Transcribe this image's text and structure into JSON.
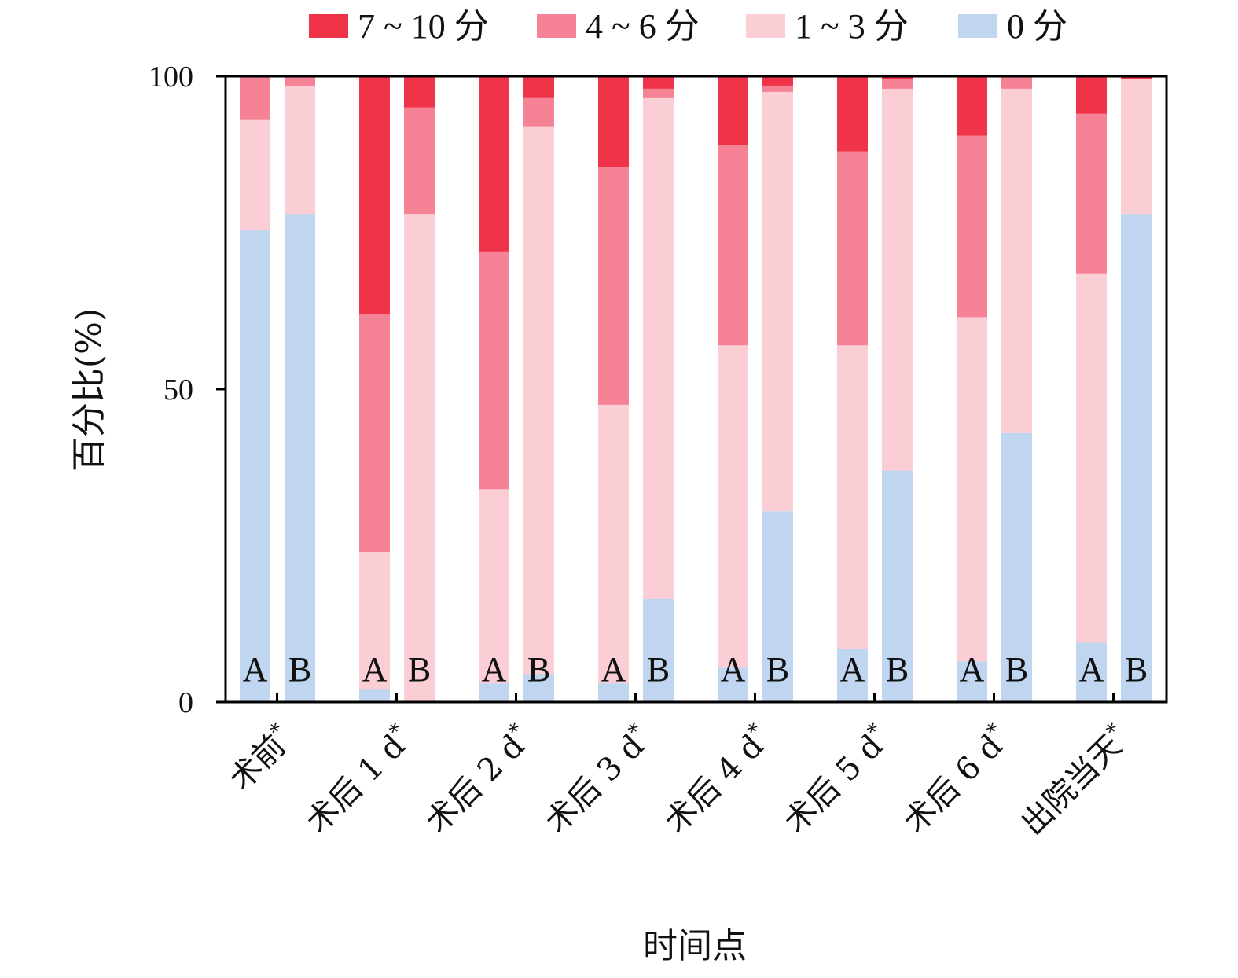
{
  "chart_data": {
    "type": "bar",
    "stacked": true,
    "ylabel": "百分比(%)",
    "xlabel": "时间点",
    "ylim": [
      0,
      100
    ],
    "yticks": [
      0,
      50,
      100
    ],
    "legend_position": "top",
    "groups": [
      "A",
      "B"
    ],
    "categories": [
      "术前*",
      "术后 1 d*",
      "术后 2 d*",
      "术后 3 d*",
      "术后 4 d*",
      "术后 5 d*",
      "术后 6 d*",
      "出院当天*"
    ],
    "series": [
      {
        "name": "0 分",
        "color": "#c0d5f0",
        "values": {
          "A": [
            75.5,
            2,
            3,
            3,
            5.5,
            8.5,
            6.5,
            9.5
          ],
          "B": [
            78,
            0,
            4.5,
            16.5,
            30.5,
            37,
            43,
            78
          ]
        }
      },
      {
        "name": "1 ~ 3 分",
        "color": "#fbcdd5",
        "values": {
          "A": [
            17.5,
            22,
            31,
            44.5,
            51.5,
            48.5,
            55,
            59
          ],
          "B": [
            20.5,
            78,
            87.5,
            80,
            67,
            61,
            55,
            21.5
          ]
        }
      },
      {
        "name": "4 ~ 6 分",
        "color": "#f58295",
        "values": {
          "A": [
            7,
            38,
            38,
            38,
            32,
            31,
            29,
            25.5
          ],
          "B": [
            1.5,
            17,
            4.5,
            1.5,
            1,
            1.5,
            2,
            0
          ]
        }
      },
      {
        "name": "7 ~ 10 分",
        "color": "#ef3449",
        "values": {
          "A": [
            0,
            38,
            28,
            14.5,
            11,
            12,
            9.5,
            6
          ],
          "B": [
            0,
            5,
            3.5,
            2,
            1.5,
            0.5,
            0,
            0.5
          ]
        }
      }
    ]
  }
}
